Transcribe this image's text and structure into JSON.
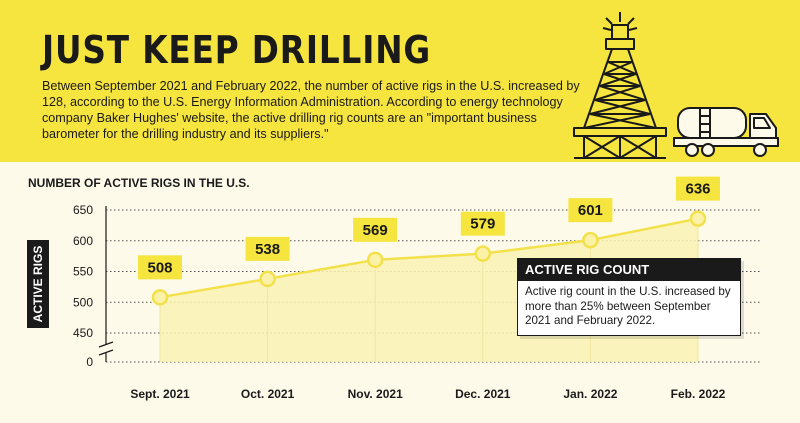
{
  "header": {
    "title": "JUST KEEP DRILLING",
    "intro": "Between September 2021 and February 2022, the number of active rigs in the U.S. increased by 128, according to the U.S. Energy Information Administration. According to energy technology company Baker Hughes' website, the active drilling rig counts are an \"important business barometer for the drilling industry and its suppliers.\"",
    "illustration_icons": [
      "oil-rig-icon",
      "tanker-truck-icon"
    ]
  },
  "callout": {
    "title": "ACTIVE RIG COUNT",
    "text": "Active rig count in the U.S. increased by more than 25% between September 2021 and February 2022."
  },
  "colors": {
    "accent_yellow": "#f6e43f",
    "background": "#fdfaea",
    "line": "#f3e14c",
    "area_fill": "#faf1b4",
    "label_bg": "#f6e43f",
    "dark": "#1a1a1a"
  },
  "chart_data": {
    "type": "area",
    "title": "NUMBER OF ACTIVE RIGS IN THE U.S.",
    "xlabel": "",
    "ylabel": "ACTIVE RIGS",
    "categories": [
      "Sept. 2021",
      "Oct. 2021",
      "Nov. 2021",
      "Dec. 2021",
      "Jan. 2022",
      "Feb. 2022"
    ],
    "values": [
      508,
      538,
      569,
      579,
      601,
      636
    ],
    "data_labels": [
      "508",
      "538",
      "569",
      "579",
      "601",
      "636"
    ],
    "y_ticks": [
      450,
      500,
      550,
      600,
      650
    ],
    "y_break_tick": 0,
    "ylim": [
      425,
      660
    ],
    "axis_break": true,
    "grid": true,
    "legend": "none"
  }
}
